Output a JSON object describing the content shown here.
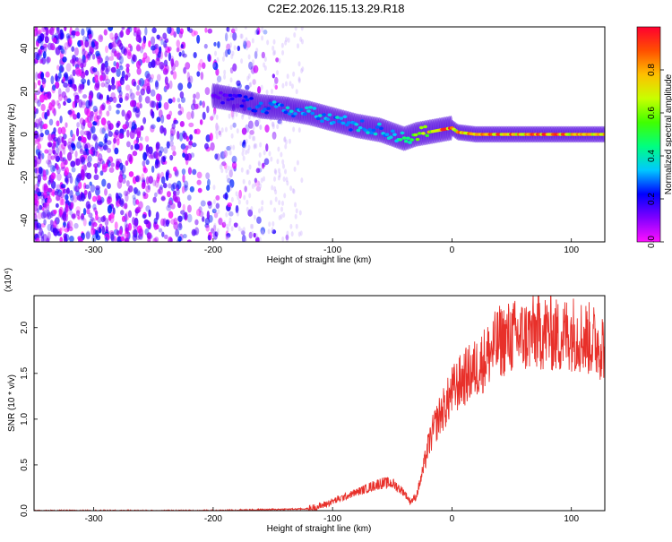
{
  "figure_title": "C2E2.2026.115.13.29.R18",
  "colors": {
    "spectrum_base": "#7a1bf0",
    "snr_line": "#e8302a",
    "axes": "#000000"
  },
  "chart_data": [
    {
      "type": "heatmap",
      "xlabel": "Height of straight line (km)",
      "ylabel": "Frequency (Hz)",
      "xlim": [
        -350,
        128
      ],
      "ylim": [
        -50,
        50
      ],
      "xticks": [
        -300,
        -200,
        -100,
        0,
        100
      ],
      "yticks": [
        -40,
        -20,
        0,
        20,
        40
      ],
      "colorbar": {
        "label": "Normalized spectral amplitude",
        "range": [
          0,
          1
        ],
        "ticks": [
          "0.0",
          "0.2",
          "0.4",
          "0.6",
          "0.8"
        ],
        "colormap": [
          "#ff10ff",
          "#8000ff",
          "#0000ff",
          "#00c8ff",
          "#00ff80",
          "#40ff00",
          "#c8ff00",
          "#ffc000",
          "#ff5000",
          "#ff0030"
        ]
      },
      "noise_region_x": [
        -350,
        -125
      ],
      "ridge": {
        "x": [
          -200,
          -180,
          -160,
          -140,
          -120,
          -100,
          -80,
          -60,
          -50,
          -40,
          -30,
          -20,
          -10,
          0,
          5,
          20,
          40,
          60,
          80,
          100,
          128
        ],
        "y": [
          18,
          16,
          13,
          12,
          10,
          7,
          4,
          2,
          0,
          -2,
          0,
          1,
          2,
          3,
          1,
          0,
          0,
          0,
          0,
          0,
          0
        ],
        "amplitude": [
          0.15,
          0.2,
          0.3,
          0.35,
          0.35,
          0.35,
          0.35,
          0.35,
          0.4,
          0.5,
          0.6,
          0.75,
          0.85,
          0.9,
          0.85,
          0.8,
          0.9,
          0.85,
          0.9,
          0.85,
          0.8
        ]
      }
    },
    {
      "type": "line",
      "xlabel": "Height of straight line (km)",
      "ylabel": "SNR (10 * v/v)",
      "scale_label": "(x10⁴)",
      "xlim": [
        -350,
        128
      ],
      "ylim": [
        0,
        2.35
      ],
      "xticks": [
        -300,
        -200,
        -100,
        0,
        100
      ],
      "yticks": [
        "0.0",
        "0.5",
        "1.0",
        "1.5",
        "2.0"
      ],
      "series": [
        {
          "x": [
            -350,
            -200,
            -120,
            -110,
            -100,
            -90,
            -80,
            -70,
            -60,
            -50,
            -40,
            -35,
            -30,
            -25,
            -20,
            -15,
            -10,
            -5,
            0,
            10,
            20,
            30,
            40,
            50,
            60,
            70,
            80,
            90,
            100,
            110,
            120,
            128
          ],
          "values": [
            0.0,
            0.0,
            0.02,
            0.05,
            0.1,
            0.15,
            0.2,
            0.25,
            0.3,
            0.3,
            0.2,
            0.1,
            0.15,
            0.4,
            0.7,
            0.9,
            1.05,
            1.15,
            1.3,
            1.45,
            1.55,
            1.7,
            1.85,
            1.9,
            1.9,
            1.95,
            1.95,
            1.9,
            1.95,
            1.9,
            1.85,
            1.8
          ]
        }
      ]
    }
  ]
}
